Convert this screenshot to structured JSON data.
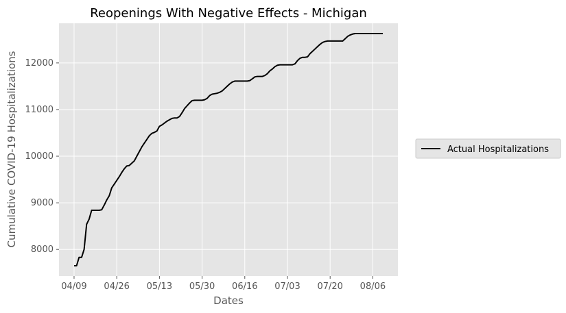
{
  "chart_data": {
    "type": "line",
    "title": "Reopenings With Negative Effects - Michigan",
    "xlabel": "Dates",
    "ylabel": "Cumulative COVID-19 Hospitalizations",
    "x_tick_labels": [
      "04/09",
      "04/26",
      "05/13",
      "05/30",
      "06/16",
      "07/03",
      "07/20",
      "08/06"
    ],
    "y_ticks": [
      8000,
      9000,
      10000,
      11000,
      12000
    ],
    "ylim": [
      7430,
      12850
    ],
    "xlim_days_from_start": [
      -6,
      129
    ],
    "grid": true,
    "legend_position": "outside-right",
    "x_start_date": "04/09",
    "series": [
      {
        "name": "Actual Hospitalizations",
        "color": "#000000",
        "x": [
          0,
          1,
          2,
          3,
          4,
          5,
          6,
          7,
          8,
          9,
          10,
          11,
          12,
          13,
          14,
          15,
          16,
          17,
          18,
          19,
          20,
          21,
          22,
          23,
          24,
          25,
          26,
          27,
          28,
          29,
          30,
          31,
          32,
          33,
          34,
          35,
          36,
          37,
          38,
          39,
          40,
          41,
          42,
          43,
          44,
          45,
          46,
          47,
          48,
          49,
          50,
          51,
          52,
          53,
          54,
          55,
          56,
          57,
          58,
          59,
          60,
          61,
          62,
          63,
          64,
          65,
          66,
          67,
          68,
          69,
          70,
          71,
          72,
          73,
          74,
          75,
          76,
          77,
          78,
          79,
          80,
          81,
          82,
          83,
          84,
          85,
          86,
          87,
          88,
          89,
          90,
          91,
          92,
          93,
          94,
          95,
          96,
          97,
          98,
          99,
          100,
          101,
          102,
          103,
          104,
          105,
          106,
          107,
          108,
          109,
          110,
          111,
          112,
          113,
          114,
          115,
          116,
          117,
          118,
          119,
          120,
          121,
          122,
          123
        ],
        "y": [
          7650,
          7650,
          7830,
          7830,
          8000,
          8540,
          8650,
          8840,
          8840,
          8840,
          8840,
          8850,
          8950,
          9060,
          9150,
          9320,
          9400,
          9480,
          9560,
          9650,
          9730,
          9790,
          9800,
          9850,
          9900,
          10000,
          10100,
          10200,
          10280,
          10360,
          10440,
          10490,
          10510,
          10540,
          10640,
          10670,
          10710,
          10750,
          10780,
          10810,
          10820,
          10820,
          10850,
          10930,
          11020,
          11080,
          11140,
          11190,
          11200,
          11200,
          11200,
          11200,
          11210,
          11240,
          11300,
          11330,
          11340,
          11350,
          11370,
          11400,
          11450,
          11500,
          11550,
          11590,
          11610,
          11610,
          11610,
          11610,
          11610,
          11610,
          11620,
          11660,
          11700,
          11710,
          11710,
          11710,
          11730,
          11770,
          11830,
          11870,
          11920,
          11950,
          11960,
          11960,
          11960,
          11960,
          11960,
          11960,
          11980,
          12050,
          12100,
          12120,
          12120,
          12130,
          12200,
          12250,
          12300,
          12350,
          12400,
          12440,
          12460,
          12470,
          12470,
          12470,
          12470,
          12470,
          12470,
          12470,
          12520,
          12570,
          12600,
          12620,
          12630,
          12630,
          12630,
          12630,
          12630,
          12630,
          12630,
          12630,
          12630,
          12630,
          12630,
          12630
        ]
      }
    ]
  }
}
